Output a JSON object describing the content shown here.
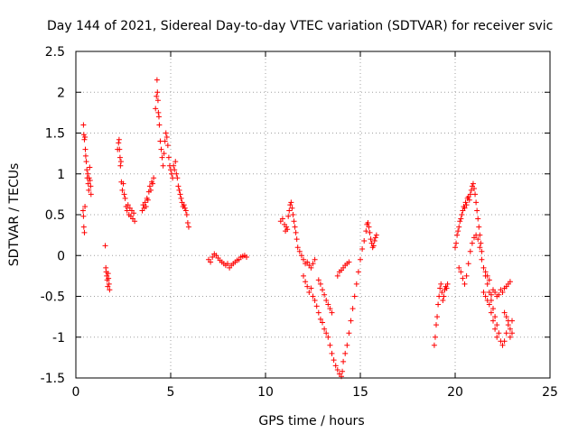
{
  "chart_data": {
    "type": "scatter",
    "title": "Day 144 of 2021, Sidereal Day-to-day VTEC variation (SDTVAR) for receiver svic",
    "xlabel": "GPS time / hours",
    "ylabel": "SDTVAR / TECUs",
    "xlim": [
      0,
      25
    ],
    "ylim": [
      -1.5,
      2.5
    ],
    "xticks": [
      0,
      5,
      10,
      15,
      20,
      25
    ],
    "xtick_labels": [
      "0",
      "5",
      "10",
      "15",
      "20",
      "25"
    ],
    "yticks": [
      -1.5,
      -1,
      -0.5,
      0,
      0.5,
      1,
      1.5,
      2,
      2.5
    ],
    "ytick_labels": [
      "-1.5",
      "-1",
      "-0.5",
      "0",
      "0.5",
      "1",
      "1.5",
      "2",
      "2.5"
    ],
    "grid": true,
    "marker": "+",
    "series": [
      {
        "name": "svic",
        "color": "#ff0000",
        "points": [
          [
            0.4,
            1.6
          ],
          [
            0.42,
            1.48
          ],
          [
            0.45,
            1.42
          ],
          [
            0.48,
            1.45
          ],
          [
            0.5,
            1.3
          ],
          [
            0.52,
            1.22
          ],
          [
            0.55,
            1.15
          ],
          [
            0.58,
            1.05
          ],
          [
            0.6,
            0.95
          ],
          [
            0.63,
            1.0
          ],
          [
            0.65,
            0.88
          ],
          [
            0.68,
            0.8
          ],
          [
            0.7,
            0.95
          ],
          [
            0.73,
            1.08
          ],
          [
            0.75,
            0.92
          ],
          [
            0.78,
            0.85
          ],
          [
            0.8,
            0.75
          ],
          [
            0.38,
            0.55
          ],
          [
            0.4,
            0.48
          ],
          [
            0.42,
            0.35
          ],
          [
            0.45,
            0.28
          ],
          [
            0.48,
            0.6
          ],
          [
            1.55,
            0.12
          ],
          [
            1.58,
            -0.15
          ],
          [
            1.6,
            -0.2
          ],
          [
            1.63,
            -0.25
          ],
          [
            1.65,
            -0.3
          ],
          [
            1.68,
            -0.38
          ],
          [
            1.7,
            -0.22
          ],
          [
            1.72,
            -0.28
          ],
          [
            1.75,
            -0.35
          ],
          [
            1.78,
            -0.42
          ],
          [
            2.2,
            1.3
          ],
          [
            2.25,
            1.38
          ],
          [
            2.28,
            1.42
          ],
          [
            2.3,
            1.3
          ],
          [
            2.33,
            1.2
          ],
          [
            2.35,
            1.1
          ],
          [
            2.38,
            1.15
          ],
          [
            2.4,
            0.9
          ],
          [
            2.45,
            0.8
          ],
          [
            2.5,
            0.88
          ],
          [
            2.55,
            0.75
          ],
          [
            2.6,
            0.7
          ],
          [
            2.65,
            0.6
          ],
          [
            2.7,
            0.55
          ],
          [
            2.75,
            0.62
          ],
          [
            2.8,
            0.5
          ],
          [
            2.85,
            0.58
          ],
          [
            2.9,
            0.48
          ],
          [
            2.95,
            0.55
          ],
          [
            3.0,
            0.45
          ],
          [
            3.05,
            0.52
          ],
          [
            3.1,
            0.42
          ],
          [
            3.5,
            0.55
          ],
          [
            3.55,
            0.62
          ],
          [
            3.6,
            0.58
          ],
          [
            3.65,
            0.65
          ],
          [
            3.7,
            0.6
          ],
          [
            3.75,
            0.7
          ],
          [
            3.8,
            0.68
          ],
          [
            3.85,
            0.78
          ],
          [
            3.9,
            0.85
          ],
          [
            3.95,
            0.8
          ],
          [
            4.0,
            0.9
          ],
          [
            4.05,
            0.88
          ],
          [
            4.1,
            0.95
          ],
          [
            4.2,
            1.8
          ],
          [
            4.25,
            1.95
          ],
          [
            4.28,
            2.15
          ],
          [
            4.3,
            2.0
          ],
          [
            4.33,
            1.9
          ],
          [
            4.35,
            1.75
          ],
          [
            4.38,
            1.7
          ],
          [
            4.4,
            1.6
          ],
          [
            4.45,
            1.4
          ],
          [
            4.5,
            1.3
          ],
          [
            4.55,
            1.2
          ],
          [
            4.6,
            1.1
          ],
          [
            4.65,
            1.25
          ],
          [
            4.7,
            1.4
          ],
          [
            4.75,
            1.5
          ],
          [
            4.8,
            1.45
          ],
          [
            4.85,
            1.35
          ],
          [
            4.9,
            1.2
          ],
          [
            4.95,
            1.1
          ],
          [
            5.0,
            1.05
          ],
          [
            5.05,
            1.0
          ],
          [
            5.1,
            0.95
          ],
          [
            5.15,
            1.1
          ],
          [
            5.2,
            1.05
          ],
          [
            5.25,
            1.15
          ],
          [
            5.3,
            1.0
          ],
          [
            5.35,
            0.95
          ],
          [
            5.4,
            0.85
          ],
          [
            5.45,
            0.8
          ],
          [
            5.5,
            0.75
          ],
          [
            5.55,
            0.7
          ],
          [
            5.6,
            0.65
          ],
          [
            5.65,
            0.6
          ],
          [
            5.7,
            0.62
          ],
          [
            5.75,
            0.58
          ],
          [
            5.8,
            0.55
          ],
          [
            5.85,
            0.5
          ],
          [
            5.9,
            0.4
          ],
          [
            5.95,
            0.35
          ],
          [
            7.0,
            -0.05
          ],
          [
            7.1,
            -0.08
          ],
          [
            7.2,
            -0.02
          ],
          [
            7.3,
            0.02
          ],
          [
            7.4,
            0.0
          ],
          [
            7.5,
            -0.03
          ],
          [
            7.6,
            -0.06
          ],
          [
            7.7,
            -0.08
          ],
          [
            7.8,
            -0.1
          ],
          [
            7.9,
            -0.12
          ],
          [
            8.0,
            -0.1
          ],
          [
            8.1,
            -0.15
          ],
          [
            8.2,
            -0.12
          ],
          [
            8.3,
            -0.1
          ],
          [
            8.4,
            -0.08
          ],
          [
            8.5,
            -0.06
          ],
          [
            8.6,
            -0.05
          ],
          [
            8.7,
            -0.02
          ],
          [
            8.8,
            -0.01
          ],
          [
            8.9,
            0.0
          ],
          [
            9.0,
            -0.02
          ],
          [
            10.8,
            0.42
          ],
          [
            10.9,
            0.45
          ],
          [
            11.0,
            0.38
          ],
          [
            11.05,
            0.3
          ],
          [
            11.1,
            0.35
          ],
          [
            11.15,
            0.32
          ],
          [
            11.2,
            0.48
          ],
          [
            11.25,
            0.55
          ],
          [
            11.3,
            0.62
          ],
          [
            11.35,
            0.65
          ],
          [
            11.4,
            0.58
          ],
          [
            11.45,
            0.5
          ],
          [
            11.5,
            0.42
          ],
          [
            11.55,
            0.35
          ],
          [
            11.6,
            0.28
          ],
          [
            11.65,
            0.2
          ],
          [
            11.7,
            0.1
          ],
          [
            11.8,
            0.05
          ],
          [
            11.9,
            0.0
          ],
          [
            12.0,
            -0.05
          ],
          [
            12.1,
            -0.1
          ],
          [
            12.2,
            -0.08
          ],
          [
            12.3,
            -0.12
          ],
          [
            12.4,
            -0.15
          ],
          [
            12.5,
            -0.1
          ],
          [
            12.6,
            -0.05
          ],
          [
            12.0,
            -0.25
          ],
          [
            12.1,
            -0.32
          ],
          [
            12.2,
            -0.38
          ],
          [
            12.3,
            -0.45
          ],
          [
            12.4,
            -0.4
          ],
          [
            12.5,
            -0.5
          ],
          [
            12.6,
            -0.55
          ],
          [
            12.7,
            -0.62
          ],
          [
            12.8,
            -0.7
          ],
          [
            12.9,
            -0.78
          ],
          [
            13.0,
            -0.82
          ],
          [
            13.1,
            -0.9
          ],
          [
            13.2,
            -0.95
          ],
          [
            13.3,
            -1.0
          ],
          [
            13.4,
            -1.1
          ],
          [
            13.5,
            -1.2
          ],
          [
            13.6,
            -1.28
          ],
          [
            13.7,
            -1.35
          ],
          [
            13.8,
            -1.4
          ],
          [
            13.9,
            -1.45
          ],
          [
            14.0,
            -1.48
          ],
          [
            14.05,
            -1.42
          ],
          [
            12.8,
            -0.3
          ],
          [
            12.9,
            -0.35
          ],
          [
            13.0,
            -0.42
          ],
          [
            13.1,
            -0.48
          ],
          [
            13.2,
            -0.55
          ],
          [
            13.3,
            -0.6
          ],
          [
            13.4,
            -0.65
          ],
          [
            13.5,
            -0.7
          ],
          [
            14.1,
            -1.3
          ],
          [
            14.2,
            -1.2
          ],
          [
            14.3,
            -1.1
          ],
          [
            14.4,
            -0.95
          ],
          [
            14.5,
            -0.8
          ],
          [
            14.6,
            -0.65
          ],
          [
            14.7,
            -0.5
          ],
          [
            14.8,
            -0.35
          ],
          [
            14.9,
            -0.2
          ],
          [
            15.0,
            -0.05
          ],
          [
            15.1,
            0.08
          ],
          [
            15.2,
            0.18
          ],
          [
            15.3,
            0.3
          ],
          [
            15.35,
            0.38
          ],
          [
            15.4,
            0.4
          ],
          [
            15.45,
            0.35
          ],
          [
            15.5,
            0.28
          ],
          [
            15.55,
            0.2
          ],
          [
            15.6,
            0.15
          ],
          [
            15.65,
            0.1
          ],
          [
            15.7,
            0.12
          ],
          [
            15.75,
            0.18
          ],
          [
            15.8,
            0.22
          ],
          [
            15.85,
            0.25
          ],
          [
            13.8,
            -0.25
          ],
          [
            13.9,
            -0.2
          ],
          [
            14.0,
            -0.18
          ],
          [
            14.1,
            -0.15
          ],
          [
            14.2,
            -0.12
          ],
          [
            14.3,
            -0.1
          ],
          [
            14.4,
            -0.08
          ],
          [
            18.9,
            -1.1
          ],
          [
            18.95,
            -1.0
          ],
          [
            19.0,
            -0.85
          ],
          [
            19.05,
            -0.75
          ],
          [
            19.1,
            -0.6
          ],
          [
            19.15,
            -0.5
          ],
          [
            19.2,
            -0.4
          ],
          [
            19.25,
            -0.35
          ],
          [
            19.3,
            -0.45
          ],
          [
            19.35,
            -0.55
          ],
          [
            19.4,
            -0.5
          ],
          [
            19.45,
            -0.42
          ],
          [
            19.5,
            -0.38
          ],
          [
            19.55,
            -0.4
          ],
          [
            19.6,
            -0.35
          ],
          [
            20.0,
            0.1
          ],
          [
            20.05,
            0.15
          ],
          [
            20.1,
            0.25
          ],
          [
            20.15,
            0.3
          ],
          [
            20.2,
            0.35
          ],
          [
            20.25,
            0.42
          ],
          [
            20.3,
            0.45
          ],
          [
            20.35,
            0.5
          ],
          [
            20.4,
            0.55
          ],
          [
            20.45,
            0.6
          ],
          [
            20.5,
            0.58
          ],
          [
            20.55,
            0.65
          ],
          [
            20.6,
            0.62
          ],
          [
            20.65,
            0.7
          ],
          [
            20.7,
            0.72
          ],
          [
            20.75,
            0.68
          ],
          [
            20.8,
            0.75
          ],
          [
            20.85,
            0.8
          ],
          [
            20.9,
            0.85
          ],
          [
            20.95,
            0.88
          ],
          [
            21.0,
            0.82
          ],
          [
            21.05,
            0.75
          ],
          [
            21.1,
            0.65
          ],
          [
            21.15,
            0.55
          ],
          [
            21.2,
            0.45
          ],
          [
            21.25,
            0.35
          ],
          [
            21.3,
            0.25
          ],
          [
            21.35,
            0.15
          ],
          [
            21.4,
            0.05
          ],
          [
            20.2,
            -0.15
          ],
          [
            20.3,
            -0.2
          ],
          [
            20.4,
            -0.28
          ],
          [
            20.5,
            -0.35
          ],
          [
            20.6,
            -0.25
          ],
          [
            20.7,
            -0.1
          ],
          [
            20.8,
            0.05
          ],
          [
            20.9,
            0.15
          ],
          [
            21.0,
            0.22
          ],
          [
            21.1,
            0.25
          ],
          [
            21.2,
            0.2
          ],
          [
            21.3,
            0.1
          ],
          [
            21.4,
            -0.05
          ],
          [
            21.5,
            -0.15
          ],
          [
            21.6,
            -0.25
          ],
          [
            21.7,
            -0.35
          ],
          [
            21.8,
            -0.45
          ],
          [
            21.9,
            -0.55
          ],
          [
            22.0,
            -0.65
          ],
          [
            22.1,
            -0.75
          ],
          [
            22.2,
            -0.85
          ],
          [
            22.3,
            -0.95
          ],
          [
            22.4,
            -1.05
          ],
          [
            22.5,
            -1.1
          ],
          [
            22.6,
            -1.05
          ],
          [
            22.7,
            -0.95
          ],
          [
            22.8,
            -0.85
          ],
          [
            22.9,
            -0.9
          ],
          [
            23.0,
            -0.95
          ],
          [
            21.5,
            -0.45
          ],
          [
            21.6,
            -0.5
          ],
          [
            21.7,
            -0.55
          ],
          [
            21.8,
            -0.6
          ],
          [
            21.9,
            -0.48
          ],
          [
            22.0,
            -0.42
          ],
          [
            22.1,
            -0.45
          ],
          [
            22.2,
            -0.5
          ],
          [
            22.3,
            -0.48
          ],
          [
            22.4,
            -0.42
          ],
          [
            22.5,
            -0.45
          ],
          [
            22.6,
            -0.4
          ],
          [
            22.7,
            -0.38
          ],
          [
            22.8,
            -0.35
          ],
          [
            22.9,
            -0.32
          ],
          [
            21.6,
            -0.2
          ],
          [
            21.7,
            -0.25
          ],
          [
            21.8,
            -0.3
          ],
          [
            21.9,
            -0.7
          ],
          [
            22.0,
            -0.8
          ],
          [
            22.1,
            -0.9
          ],
          [
            22.2,
            -1.0
          ],
          [
            22.6,
            -0.7
          ],
          [
            22.7,
            -0.75
          ],
          [
            22.8,
            -0.8
          ],
          [
            22.9,
            -1.0
          ],
          [
            23.0,
            -0.8
          ]
        ]
      }
    ]
  }
}
